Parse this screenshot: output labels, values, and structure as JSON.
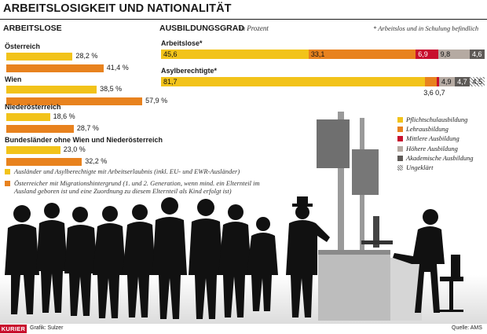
{
  "title": "ARBEITSLOSIGKEIT UND NATIONALITÄT",
  "colors": {
    "yellow": "#f2c31a",
    "orange": "#e8821e",
    "red": "#c8102e",
    "grey_light": "#b5aaa2",
    "grey_dark": "#5e5a57",
    "hatched": "#cccccc"
  },
  "left_section": {
    "heading": "ARBEITSLOSE"
  },
  "right_section": {
    "heading": "AUSBILDUNGSGRAD",
    "subheading": "in Prozent",
    "note": "* Arbeitslos und in Schulung befindlich"
  },
  "chart_data": [
    {
      "type": "bar",
      "orientation": "horizontal",
      "title": "ARBEITSLOSE",
      "categories": [
        "Österreich",
        "Wien",
        "Niederösterreich",
        "Bundesländer ohne Wien und Niederösterreich"
      ],
      "series": [
        {
          "name": "Ausländer und Asylberechtigte mit Arbeitserlaubnis (inkl. EU- und EWR-Ausländer)",
          "color": "#f2c31a",
          "values": [
            28.2,
            38.5,
            18.6,
            23.0
          ],
          "labels": [
            "28,2 %",
            "38,5 %",
            "18,6 %",
            "23,0 %"
          ]
        },
        {
          "name": "Österreicher mit Migrationshintergrund (1. und 2. Generation, wenn mind. ein Elternteil im Ausland geboren ist und eine Zuordnung zu diesem Elternteil als Kind erfolgt ist)",
          "color": "#e8821e",
          "values": [
            41.4,
            57.9,
            28.7,
            32.2
          ],
          "labels": [
            "41,4 %",
            "57,9 %",
            "28,7 %",
            "32,2 %"
          ]
        }
      ]
    },
    {
      "type": "bar",
      "orientation": "horizontal",
      "stacked": true,
      "title": "AUSBILDUNGSGRAD",
      "subtitle": "in Prozent",
      "categories": [
        "Arbeitslose*",
        "Asylberechtigte*"
      ],
      "series": [
        {
          "name": "Pflichtschulausbildung",
          "color": "#f2c31a",
          "values": [
            45.6,
            81.7
          ],
          "labels": [
            "45,6",
            "81,7"
          ]
        },
        {
          "name": "Lehrausbildung",
          "color": "#e8821e",
          "values": [
            33.1,
            3.6
          ],
          "labels": [
            "33,1",
            "3,6"
          ]
        },
        {
          "name": "Mittlere Ausbildung",
          "color": "#c8102e",
          "values": [
            6.9,
            0.7
          ],
          "labels": [
            "6,9",
            "0,7"
          ]
        },
        {
          "name": "Höhere Ausbildung",
          "color": "#b5aaa2",
          "values": [
            9.8,
            4.9
          ],
          "labels": [
            "9,8",
            "4,9"
          ]
        },
        {
          "name": "Akademische Ausbildung",
          "color": "#5e5a57",
          "values": [
            4.6,
            4.7
          ],
          "labels": [
            "4,6",
            "4,7"
          ]
        },
        {
          "name": "Ungeklärt",
          "color": "#cccccc",
          "values": [
            0,
            4.5
          ],
          "labels": [
            "",
            "4,5"
          ]
        }
      ],
      "legend": "right"
    }
  ],
  "footer": {
    "brand": "KURIER",
    "credit": "Grafik: Sulzer",
    "source": "Quelle: AMS"
  }
}
